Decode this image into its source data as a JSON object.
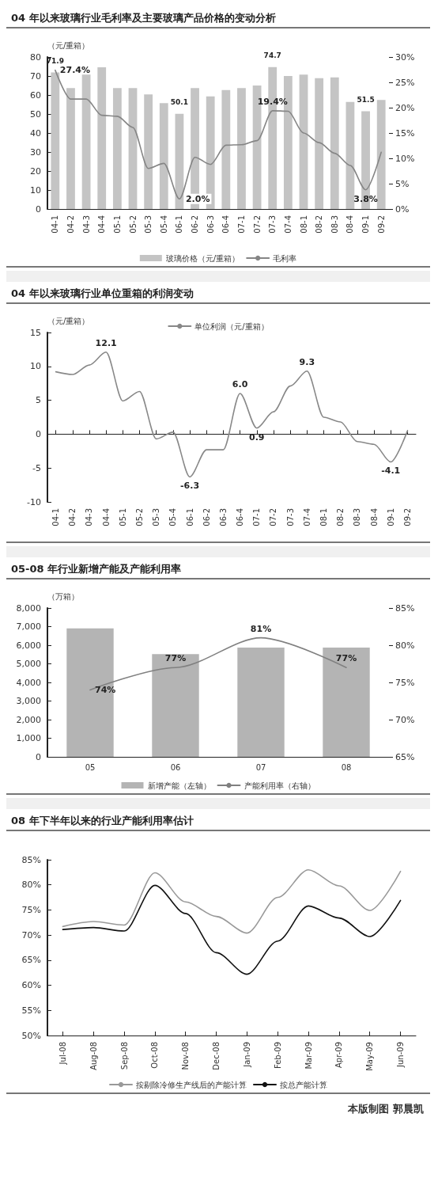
{
  "chart_data": [
    {
      "type": "bar",
      "title": "04 年以来玻璃行业毛利率及主要玻璃产品价格的变动分析",
      "ylabel": "（元/重箱）",
      "categories": [
        "04-1",
        "04-2",
        "04-3",
        "04-4",
        "05-1",
        "05-2",
        "05-3",
        "05-4",
        "06-1",
        "06-2",
        "06-3",
        "06-4",
        "07-1",
        "07-2",
        "07-3",
        "07-4",
        "08-1",
        "08-2",
        "08-3",
        "08-4",
        "09-1",
        "09-2"
      ],
      "series": [
        {
          "name": "玻璃价格（元/重箱）",
          "type": "bar",
          "color": "#c4c4c4",
          "values": [
            71.9,
            63.6,
            70.7,
            74.6,
            63.6,
            63.6,
            60.3,
            55.7,
            50.1,
            63.6,
            59.3,
            62.6,
            63.6,
            65,
            74.7,
            70,
            70.7,
            68.9,
            69.3,
            56.4,
            51.5,
            57.4
          ],
          "value_labels": [
            "71.9",
            null,
            null,
            null,
            null,
            null,
            null,
            null,
            "50.1",
            null,
            null,
            null,
            null,
            null,
            "74.7",
            null,
            null,
            null,
            null,
            null,
            "51.5",
            null
          ]
        },
        {
          "name": "毛利率",
          "type": "line",
          "axis": "y2",
          "color": "#858585",
          "values": [
            27.4,
            21.7,
            21.7,
            18.5,
            18.3,
            16.1,
            8.0,
            9.0,
            2.0,
            10.2,
            8.8,
            12.6,
            12.7,
            13.5,
            19.4,
            19.3,
            15.0,
            13.1,
            11.0,
            8.6,
            3.8,
            11.2
          ],
          "value_labels": [
            "27.4%",
            null,
            null,
            null,
            null,
            null,
            null,
            null,
            "2.0%",
            null,
            null,
            null,
            null,
            null,
            "19.4%",
            null,
            null,
            null,
            null,
            null,
            "3.8%",
            null
          ]
        }
      ],
      "ylim": [
        0,
        80
      ],
      "yticks": [
        0,
        10,
        20,
        30,
        40,
        50,
        60,
        70,
        80
      ],
      "y2lim": [
        0,
        30
      ],
      "y2ticks": [
        {
          "value": 0,
          "label": "0%"
        },
        {
          "value": 5,
          "label": "5%"
        },
        {
          "value": 10,
          "label": "10%"
        },
        {
          "value": 15,
          "label": "15%"
        },
        {
          "value": 20,
          "label": "20%"
        },
        {
          "value": 25,
          "label": "25%"
        },
        {
          "value": 30,
          "label": "30%"
        }
      ],
      "legend": "bottom"
    },
    {
      "type": "line",
      "title": "04 年以来玻璃行业单位重箱的利润变动",
      "ylabel": "（元/重箱）",
      "categories": [
        "04-1",
        "04-2",
        "04-3",
        "04-4",
        "05-1",
        "05-2",
        "05-3",
        "05-4",
        "06-1",
        "06-2",
        "06-3",
        "06-4",
        "07-1",
        "07-2",
        "07-3",
        "07-4",
        "08-1",
        "08-2",
        "08-3",
        "08-4",
        "09-1",
        "09-2"
      ],
      "series": [
        {
          "name": "单位利润（元/重箱）",
          "color": "#888888",
          "values": [
            9.2,
            8.8,
            10.2,
            12.1,
            4.9,
            6.3,
            -0.7,
            0.3,
            -6.3,
            -2.3,
            -2.3,
            6.0,
            0.9,
            3.3,
            7.1,
            9.3,
            2.5,
            1.8,
            -1.1,
            -1.5,
            -4.1,
            0.5
          ],
          "value_labels": [
            null,
            null,
            null,
            "12.1",
            null,
            null,
            null,
            null,
            "-6.3",
            null,
            null,
            "6.0",
            "0.9",
            null,
            null,
            "9.3",
            null,
            null,
            null,
            null,
            "-4.1",
            null
          ]
        }
      ],
      "ylim": [
        -10,
        15
      ],
      "yticks": [
        -10,
        -5,
        0,
        5,
        10,
        15
      ],
      "legend": "top"
    },
    {
      "type": "bar",
      "title": "05-08 年行业新增产能及产能利用率",
      "ylabel": "（万箱）",
      "categories": [
        "05",
        "06",
        "07",
        "08"
      ],
      "series": [
        {
          "name": "新增产能（左轴）",
          "type": "bar",
          "color": "#b4b4b4",
          "values": [
            6900,
            5520,
            5870,
            5870
          ]
        },
        {
          "name": "产能利用率（右轴）",
          "type": "line",
          "axis": "y2",
          "color": "#808080",
          "values": [
            74,
            77,
            81,
            77
          ],
          "value_labels": [
            "74%",
            "77%",
            "81%",
            "77%"
          ]
        }
      ],
      "ylim": [
        0,
        8000
      ],
      "yticks": [
        {
          "value": 0,
          "label": "0"
        },
        {
          "value": 1000,
          "label": "1,000"
        },
        {
          "value": 2000,
          "label": "2,000"
        },
        {
          "value": 3000,
          "label": "3,000"
        },
        {
          "value": 4000,
          "label": "4,000"
        },
        {
          "value": 5000,
          "label": "5,000"
        },
        {
          "value": 6000,
          "label": "6,000"
        },
        {
          "value": 7000,
          "label": "7,000"
        },
        {
          "value": 8000,
          "label": "8,000"
        }
      ],
      "y2lim": [
        65,
        85
      ],
      "y2ticks": [
        {
          "value": 65,
          "label": "65%"
        },
        {
          "value": 70,
          "label": "70%"
        },
        {
          "value": 75,
          "label": "75%"
        },
        {
          "value": 80,
          "label": "80%"
        },
        {
          "value": 85,
          "label": "85%"
        }
      ],
      "legend": "bottom"
    },
    {
      "type": "line",
      "title": "08 年下半年以来的行业产能利用率估计",
      "categories": [
        "Jul-08",
        "Aug-08",
        "Sep-08",
        "Oct-08",
        "Nov-08",
        "Dec-08",
        "Jan-09",
        "Feb-09",
        "Mar-09",
        "Apr-09",
        "May-09",
        "Jun-09"
      ],
      "series": [
        {
          "name": "按剔除冷修生产线后的产能计算",
          "color": "#999999",
          "values": [
            71.7,
            72.7,
            72,
            82.4,
            76.6,
            73.7,
            70.4,
            77.5,
            83,
            79.8,
            74.9,
            82.7
          ]
        },
        {
          "name": "按总产能计算",
          "color": "#111111",
          "values": [
            71.1,
            71.5,
            70.8,
            79.9,
            74.3,
            66.5,
            62.2,
            68.8,
            75.8,
            73.4,
            69.7,
            76.9
          ]
        }
      ],
      "ylim": [
        50,
        85
      ],
      "yticks": [
        {
          "value": 50,
          "label": "50%"
        },
        {
          "value": 55,
          "label": "55%"
        },
        {
          "value": 60,
          "label": "60%"
        },
        {
          "value": 65,
          "label": "65%"
        },
        {
          "value": 70,
          "label": "70%"
        },
        {
          "value": 75,
          "label": "75%"
        },
        {
          "value": 80,
          "label": "80%"
        },
        {
          "value": 85,
          "label": "85%"
        }
      ],
      "legend": "bottom",
      "annotations": [
        "本版制图 郭晨凯"
      ]
    }
  ]
}
